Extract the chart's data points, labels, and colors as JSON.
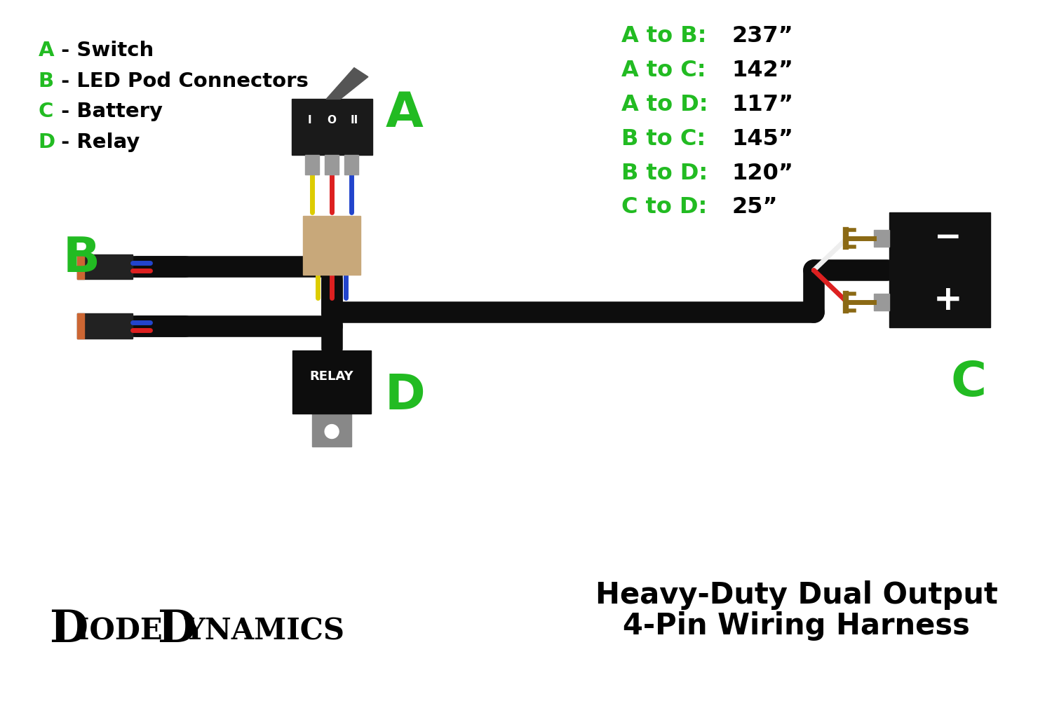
{
  "bg_color": "#ffffff",
  "green_color": "#22bb22",
  "legend_items": [
    [
      "A",
      " - Switch"
    ],
    [
      "B",
      " - LED Pod Connectors"
    ],
    [
      "C",
      " - Battery"
    ],
    [
      "D",
      " - Relay"
    ]
  ],
  "distances": [
    [
      "A to B: ",
      "237”"
    ],
    [
      "A to C: ",
      "142”"
    ],
    [
      "A to D: ",
      "117”"
    ],
    [
      "B to C: ",
      "145”"
    ],
    [
      "B to D: ",
      "120”"
    ],
    [
      "C to D: ",
      "25”"
    ]
  ],
  "label_A": "A",
  "label_B": "B",
  "label_C": "C",
  "label_D": "D",
  "title_line1": "Heavy-Duty Dual Output",
  "title_line2": "4-Pin Wiring Harness",
  "brand_D1": "D",
  "brand_rest1": "IODE",
  "brand_D2": "D",
  "brand_rest2": "YNAMICS",
  "wire_black": "#0d0d0d",
  "wire_red": "#dd2020",
  "wire_blue": "#2244cc",
  "wire_yellow": "#ddcc00",
  "wire_white": "#eeeeee",
  "connector_tan": "#c8a87a",
  "relay_gray": "#888888",
  "terminal_brown": "#8B6914",
  "switch_dark": "#1a1a1a",
  "toggle_gray": "#555555",
  "pin_gray": "#999999",
  "led_orange": "#cc6633",
  "battery_dark": "#111111"
}
